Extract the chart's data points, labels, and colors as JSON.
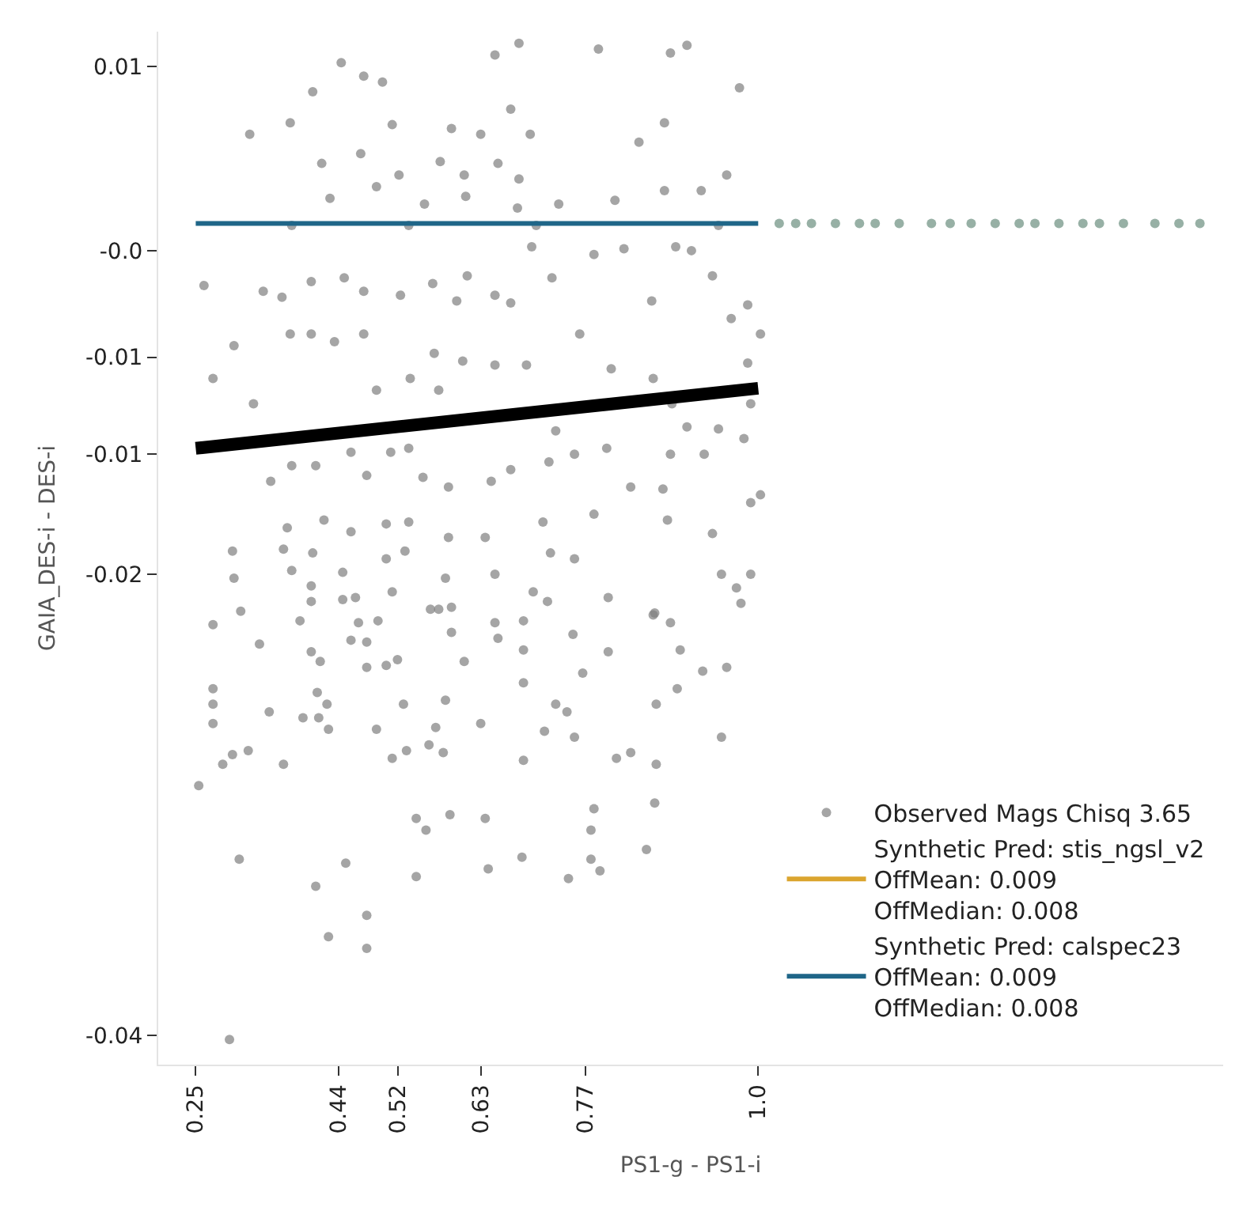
{
  "chart_data": {
    "type": "scatter",
    "xlabel": "PS1-g - PS1-i",
    "ylabel": "GAIA_DES-i - DES-i",
    "xlim": [
      0.2,
      1.62
    ],
    "ylim": [
      -0.0415,
      0.0118
    ],
    "xticks": [
      0.25,
      0.44,
      0.52,
      0.63,
      0.77,
      {
        "value": 1.0,
        "label": "1.0"
      }
    ],
    "yticks": [
      0.01,
      {
        "value": 0.0005,
        "label": "-0.0"
      },
      {
        "value": -0.005,
        "label": "-0.01"
      },
      {
        "value": -0.01,
        "label": "-0.01"
      },
      {
        "value": -0.0162,
        "label": "-0.02"
      },
      -0.04
    ],
    "legend": "bottom right",
    "series": [
      {
        "name": "Observed Mags Chisq 3.65",
        "marker": "circle",
        "color": "#7f7f7f",
        "x": [
          0.444,
          0.474,
          0.499,
          0.406,
          0.649,
          0.681,
          0.787,
          0.883,
          0.905,
          0.975,
          0.322,
          0.376,
          0.512,
          0.591,
          0.63,
          0.696,
          0.67,
          0.875,
          0.841,
          0.958,
          0.418,
          0.47,
          0.576,
          0.653,
          0.608,
          0.681,
          0.521,
          0.491,
          0.429,
          0.555,
          0.61,
          0.679,
          0.734,
          0.809,
          0.875,
          0.924,
          0.378,
          0.534,
          0.704,
          0.947,
          0.261,
          0.34,
          0.365,
          0.404,
          0.448,
          0.474,
          0.523,
          0.566,
          0.598,
          0.612,
          0.649,
          0.67,
          0.698,
          0.725,
          0.781,
          0.821,
          0.89,
          0.911,
          0.939,
          0.858,
          0.986,
          0.964,
          0.301,
          0.273,
          0.327,
          0.376,
          0.404,
          0.435,
          0.474,
          0.568,
          0.606,
          0.649,
          0.691,
          0.762,
          0.804,
          0.86,
          1.003,
          0.986,
          0.491,
          0.574,
          0.536,
          0.35,
          0.378,
          0.41,
          0.457,
          0.478,
          0.534,
          0.553,
          0.51,
          0.587,
          0.644,
          0.67,
          0.721,
          0.73,
          0.755,
          0.798,
          0.83,
          0.873,
          0.883,
          0.905,
          0.928,
          0.947,
          0.981,
          0.99,
          1.003,
          0.99,
          0.885,
          0.372,
          0.421,
          0.457,
          0.504,
          0.534,
          0.587,
          0.636,
          0.713,
          0.781,
          0.879,
          0.939,
          0.299,
          0.367,
          0.406,
          0.529,
          0.723,
          0.755,
          0.378,
          0.301,
          0.446,
          0.504,
          0.583,
          0.649,
          0.951,
          0.99,
          0.404,
          0.463,
          0.512,
          0.7,
          0.8,
          0.971,
          0.31,
          0.591,
          0.862,
          0.273,
          0.335,
          0.404,
          0.446,
          0.389,
          0.467,
          0.493,
          0.457,
          0.478,
          0.404,
          0.416,
          0.478,
          0.504,
          0.519,
          0.563,
          0.591,
          0.574,
          0.608,
          0.649,
          0.653,
          0.687,
          0.687,
          0.719,
          0.766,
          0.753,
          0.8,
          0.86,
          0.883,
          0.896,
          0.926,
          0.958,
          0.977,
          0.273,
          0.273,
          0.273,
          0.412,
          0.425,
          0.348,
          0.393,
          0.414,
          0.427,
          0.491,
          0.527,
          0.583,
          0.57,
          0.63,
          0.687,
          0.73,
          0.745,
          0.715,
          0.755,
          0.864,
          0.892,
          0.951,
          0.286,
          0.299,
          0.32,
          0.367,
          0.512,
          0.531,
          0.561,
          0.58,
          0.687,
          0.811,
          0.83,
          0.864,
          0.254,
          0.862,
          0.544,
          0.557,
          0.589,
          0.636,
          0.781,
          0.777,
          0.851,
          0.308,
          0.45,
          0.544,
          0.64,
          0.685,
          0.777,
          0.789,
          0.747,
          0.41,
          0.478,
          0.427,
          0.478,
          0.295
        ],
        "values": [
          0.0102,
          0.0095,
          0.0092,
          0.0087,
          0.0106,
          0.0112,
          0.0109,
          0.0107,
          0.0111,
          0.0089,
          0.0065,
          0.0071,
          0.007,
          0.0068,
          0.0065,
          0.0065,
          0.0078,
          0.0071,
          0.0061,
          0.0044,
          0.005,
          0.0055,
          0.0051,
          0.005,
          0.0044,
          0.0042,
          0.0044,
          0.0038,
          0.0032,
          0.0029,
          0.0033,
          0.0027,
          0.0029,
          0.0031,
          0.0036,
          0.0036,
          0.0018,
          0.0018,
          0.0018,
          0.0018,
          -0.0013,
          -0.0016,
          -0.0019,
          -0.0011,
          -0.0009,
          -0.0016,
          -0.0018,
          -0.0012,
          -0.0021,
          -0.0008,
          -0.0018,
          -0.0022,
          0.0007,
          -0.0009,
          0.0003,
          0.0006,
          0.0007,
          0.0005,
          -0.0008,
          -0.0021,
          -0.0023,
          -0.003,
          -0.0044,
          -0.0061,
          -0.0074,
          -0.0038,
          -0.0038,
          -0.0042,
          -0.0038,
          -0.0048,
          -0.0052,
          -0.0054,
          -0.0054,
          -0.0038,
          -0.0056,
          -0.0061,
          -0.0038,
          -0.0053,
          -0.0067,
          -0.0067,
          -0.0061,
          -0.0114,
          -0.0106,
          -0.0106,
          -0.0099,
          -0.0111,
          -0.0097,
          -0.0112,
          -0.0099,
          -0.0117,
          -0.0114,
          -0.0108,
          -0.0104,
          -0.0088,
          -0.01,
          -0.0097,
          -0.0117,
          -0.0118,
          -0.01,
          -0.0086,
          -0.01,
          -0.0087,
          -0.0092,
          -0.0074,
          -0.0121,
          -0.0125,
          -0.0074,
          -0.0138,
          -0.0134,
          -0.014,
          -0.0136,
          -0.0135,
          -0.0143,
          -0.0143,
          -0.0135,
          -0.0131,
          -0.0134,
          -0.0141,
          -0.015,
          -0.0149,
          -0.0151,
          -0.015,
          -0.0151,
          -0.0154,
          -0.016,
          -0.0164,
          -0.0161,
          -0.0154,
          -0.0164,
          -0.0162,
          -0.0162,
          -0.0162,
          -0.0168,
          -0.0174,
          -0.0171,
          -0.0171,
          -0.0174,
          -0.0169,
          -0.0181,
          -0.0179,
          -0.0182,
          -0.0188,
          -0.0198,
          -0.0176,
          -0.0175,
          -0.0186,
          -0.0187,
          -0.0186,
          -0.0196,
          -0.0197,
          -0.0202,
          -0.0207,
          -0.021,
          -0.0209,
          -0.0206,
          -0.018,
          -0.0192,
          -0.018,
          -0.0207,
          -0.0187,
          -0.0195,
          -0.0186,
          -0.0201,
          -0.0176,
          -0.0213,
          -0.0193,
          -0.0202,
          -0.0183,
          -0.0187,
          -0.0201,
          -0.0212,
          -0.021,
          -0.0177,
          -0.0221,
          -0.0229,
          -0.0239,
          -0.0223,
          -0.0229,
          -0.0233,
          -0.0236,
          -0.0236,
          -0.0242,
          -0.0242,
          -0.0229,
          -0.0227,
          -0.0241,
          -0.0239,
          -0.0218,
          -0.0229,
          -0.0233,
          -0.0243,
          -0.0246,
          -0.0229,
          -0.0221,
          -0.0246,
          -0.026,
          -0.0255,
          -0.0253,
          -0.026,
          -0.0257,
          -0.0253,
          -0.025,
          -0.0254,
          -0.0258,
          -0.0257,
          -0.0254,
          -0.026,
          -0.0271,
          -0.028,
          -0.0288,
          -0.0294,
          -0.0286,
          -0.0288,
          -0.0283,
          -0.0294,
          -0.0304,
          -0.0309,
          -0.0311,
          -0.0318,
          -0.0314,
          -0.0308,
          -0.0309,
          -0.0315,
          -0.0319,
          -0.0323,
          -0.0338,
          -0.0349,
          -0.0355,
          -0.0402
        ]
      },
      {
        "type": "line",
        "color": "#000000",
        "x": [
          0.25,
          1.0
        ],
        "values": [
          -0.0097,
          -0.0066
        ]
      },
      {
        "name": "Synthetic Pred: stis_ngsl_v2\nOffMean: 0.009\nOffMedian: 0.008",
        "type": "line",
        "color": "#dba52e",
        "values": [
          null
        ]
      },
      {
        "name": "Synthetic Pred: calspec23\nOffMean: 0.009\nOffMedian: 0.008",
        "type": "line",
        "color": "#1f6688",
        "x": [
          0.25,
          1.0
        ],
        "values": [
          0.0019,
          0.0019
        ]
      },
      {
        "marker": "circle",
        "color": "#6b8f7f",
        "x": [
          1.028,
          1.05,
          1.071,
          1.103,
          1.135,
          1.156,
          1.188,
          1.231,
          1.256,
          1.284,
          1.316,
          1.348,
          1.369,
          1.401,
          1.433,
          1.455,
          1.487,
          1.529,
          1.561,
          1.589
        ],
        "values": [
          0.0019,
          0.0019,
          0.0019,
          0.0019,
          0.0019,
          0.0019,
          0.0019,
          0.0019,
          0.0019,
          0.0019,
          0.0019,
          0.0019,
          0.0019,
          0.0019,
          0.0019,
          0.0019,
          0.0019,
          0.0019,
          0.0019,
          0.0019
        ]
      }
    ]
  }
}
